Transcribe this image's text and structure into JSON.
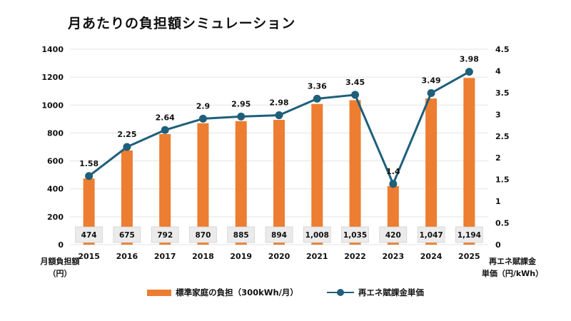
{
  "title": "月あたりの負担額シミュレーション",
  "colors": {
    "bar": "#ED7D31",
    "line": "#1F5F7A",
    "grid": "#E3E3E3",
    "label_box": "#EBEBEB",
    "label_box_border": "#C8C8C8"
  },
  "chart_data": {
    "type": "bar+line",
    "title": "月あたりの負担額シミュレーション",
    "categories": [
      "2015",
      "2016",
      "2017",
      "2018",
      "2019",
      "2020",
      "2021",
      "2022",
      "2023",
      "2024",
      "2025"
    ],
    "series": [
      {
        "name": "標準家庭の負担（300kWh/月）",
        "type": "bar",
        "axis": "left",
        "values": [
          474,
          675,
          792,
          870,
          885,
          894,
          1008,
          1035,
          420,
          1047,
          1194
        ],
        "labels": [
          "474",
          "675",
          "792",
          "870",
          "885",
          "894",
          "1,008",
          "1,035",
          "420",
          "1,047",
          "1,194"
        ]
      },
      {
        "name": "再エネ賦課金単価",
        "type": "line",
        "axis": "right",
        "values": [
          1.58,
          2.25,
          2.64,
          2.9,
          2.95,
          2.98,
          3.36,
          3.45,
          1.4,
          3.49,
          3.98
        ],
        "labels": [
          "1.58",
          "2.25",
          "2.64",
          "2.9",
          "2.95",
          "2.98",
          "3.36",
          "3.45",
          "1.4",
          "3.49",
          "3.98"
        ]
      }
    ],
    "y_left": {
      "label": "月額負担額（円）",
      "label_lines": [
        "月額負担額",
        "（円）"
      ],
      "range": [
        0,
        1400
      ],
      "ticks": [
        "0",
        "200",
        "400",
        "600",
        "800",
        "1000",
        "1200",
        "1400"
      ]
    },
    "y_right": {
      "label": "再エネ賦課金単価（円/kWh）",
      "label_lines": [
        "再エネ賦課金",
        "単価（円/kWh）"
      ],
      "range": [
        0,
        4.5
      ],
      "ticks": [
        "0",
        "0.5",
        "1",
        "1.5",
        "2",
        "2.5",
        "3",
        "3.5",
        "4",
        "4.5"
      ]
    },
    "grid": true,
    "legend_position": "bottom"
  }
}
